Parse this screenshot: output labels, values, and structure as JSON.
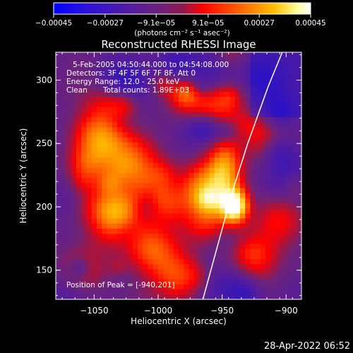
{
  "chart_data": {
    "type": "heatmap",
    "title": "Reconstructed RHESSI Image",
    "xlabel": "Heliocentric X (arcsec)",
    "ylabel": "Heliocentric Y (arcsec)",
    "xlim": [
      -1080,
      -888
    ],
    "ylim": [
      127,
      322
    ],
    "x_ticks": [
      -1050,
      -1000,
      -950,
      -900
    ],
    "x_tick_labels": [
      "−1050",
      "−1000",
      "−950",
      "−900"
    ],
    "y_ticks": [
      150,
      200,
      250,
      300
    ],
    "y_tick_labels": [
      "150",
      "200",
      "250",
      "300"
    ],
    "annotations": [
      "5-Feb-2005 04:50:44.000 to 04:54:08.000",
      "Detectors: 3F 4F 5F 6F 7F 8F, Att 0",
      "Energy Range: 12.0 - 25.0 keV",
      "Clean",
      "Total counts: 1.89E+03"
    ],
    "peak_label": "Position of Peak = [-940,201]",
    "peak": {
      "x": -940,
      "y": 201
    },
    "limb_curve": [
      [
        -965,
        127
      ],
      [
        -952,
        175
      ],
      [
        -942,
        212
      ],
      [
        -930,
        250
      ],
      [
        -914,
        295
      ],
      [
        -903,
        322
      ]
    ],
    "colorbar": {
      "min": -0.00045,
      "max": 0.00045,
      "ticks": [
        -0.00045,
        -0.00027,
        -9.1e-05,
        9.1e-05,
        0.00027,
        0.00045
      ],
      "tick_labels": [
        "−0.00045",
        "−0.00027",
        "−9.1e−05",
        "9.1e−05",
        "0.00027",
        "0.00045"
      ],
      "units": "(photons cm⁻² s⁻¹ asec⁻²)",
      "colors": [
        "#0000ff",
        "#3010d0",
        "#5018a0",
        "#6a2080",
        "#ff0000",
        "#ff7000",
        "#ffc000",
        "#ffffc0",
        "#ffffff"
      ]
    },
    "background_color": "#000000",
    "limb_color": "#ffffff"
  },
  "footer": {
    "timestamp": "28-Apr-2022 06:52"
  }
}
